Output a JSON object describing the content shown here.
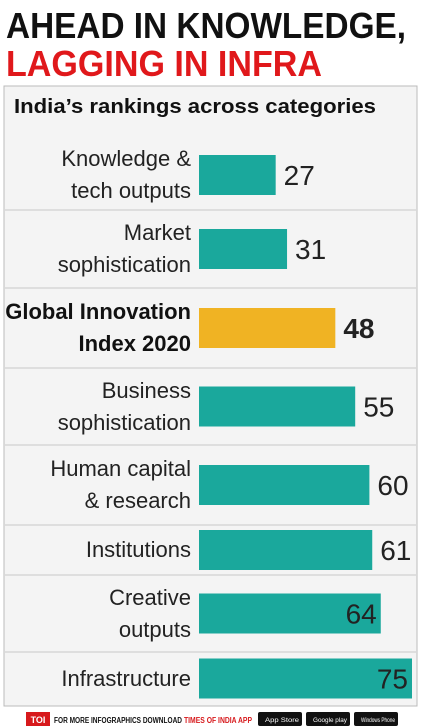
{
  "chart_data": {
    "type": "bar",
    "orientation": "horizontal",
    "title": [
      "AHEAD IN KNOWLEDGE,",
      "LAGGING IN INFRA"
    ],
    "title_colors": [
      "#111111",
      "#e0181b"
    ],
    "subtitle": "India’s rankings across categories",
    "categories": [
      "Knowledge &\ntech outputs",
      "Market\nsophistication",
      "Global Innovation\nIndex 2020",
      "Business\nsophistication",
      "Human capital\n& research",
      "Institutions",
      "Creative\noutputs",
      "Infrastructure"
    ],
    "values": [
      27,
      31,
      48,
      55,
      60,
      61,
      64,
      75
    ],
    "colors": [
      "#1aa89c",
      "#1aa89c",
      "#f0b323",
      "#1aa89c",
      "#1aa89c",
      "#1aa89c",
      "#1aa89c",
      "#1aa89c"
    ],
    "bold": [
      false,
      false,
      true,
      false,
      false,
      false,
      false,
      false
    ]
  },
  "footer": {
    "logo": "TOI",
    "text": "FOR MORE INFOGRAPHICS DOWNLOAD",
    "app": "TIMES OF INDIA APP",
    "badges": [
      "App Store",
      "Google play",
      "Windows Phone"
    ]
  }
}
